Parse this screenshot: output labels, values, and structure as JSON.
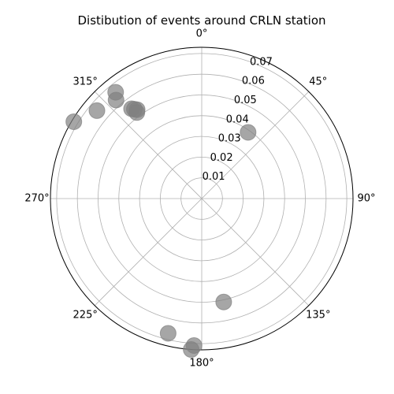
{
  "chart_data": {
    "type": "scatter",
    "projection": "polar",
    "title": "Distibution of events around CRLN station",
    "theta_zero_location": "N",
    "theta_direction": "clockwise",
    "theta_ticks": [
      {
        "deg": 0,
        "label": "0°"
      },
      {
        "deg": 45,
        "label": "45°"
      },
      {
        "deg": 90,
        "label": "90°"
      },
      {
        "deg": 135,
        "label": "135°"
      },
      {
        "deg": 180,
        "label": "180°"
      },
      {
        "deg": 225,
        "label": "225°"
      },
      {
        "deg": 270,
        "label": "270°"
      },
      {
        "deg": 315,
        "label": "315°"
      }
    ],
    "r_ticks": [
      {
        "value": 0.01,
        "label": "0.01"
      },
      {
        "value": 0.02,
        "label": "0.02"
      },
      {
        "value": 0.03,
        "label": "0.03"
      },
      {
        "value": 0.04,
        "label": "0.04"
      },
      {
        "value": 0.05,
        "label": "0.05"
      },
      {
        "value": 0.06,
        "label": "0.06"
      },
      {
        "value": 0.07,
        "label": "0.07"
      }
    ],
    "r_label_angle_deg": 22.5,
    "rlim": [
      0,
      0.073
    ],
    "grid": true,
    "marker_color": "#808080",
    "marker_alpha": 0.7,
    "points": [
      {
        "theta_deg": 35,
        "r": 0.039
      },
      {
        "theta_deg": 322,
        "r": 0.055
      },
      {
        "theta_deg": 323,
        "r": 0.054
      },
      {
        "theta_deg": 324,
        "r": 0.053
      },
      {
        "theta_deg": 323,
        "r": 0.052
      },
      {
        "theta_deg": 319,
        "r": 0.063
      },
      {
        "theta_deg": 321,
        "r": 0.066
      },
      {
        "theta_deg": 310,
        "r": 0.066
      },
      {
        "theta_deg": 301,
        "r": 0.072
      },
      {
        "theta_deg": 168,
        "r": 0.051
      },
      {
        "theta_deg": 194,
        "r": 0.067
      },
      {
        "theta_deg": 183,
        "r": 0.071
      },
      {
        "theta_deg": 184,
        "r": 0.073
      }
    ]
  }
}
